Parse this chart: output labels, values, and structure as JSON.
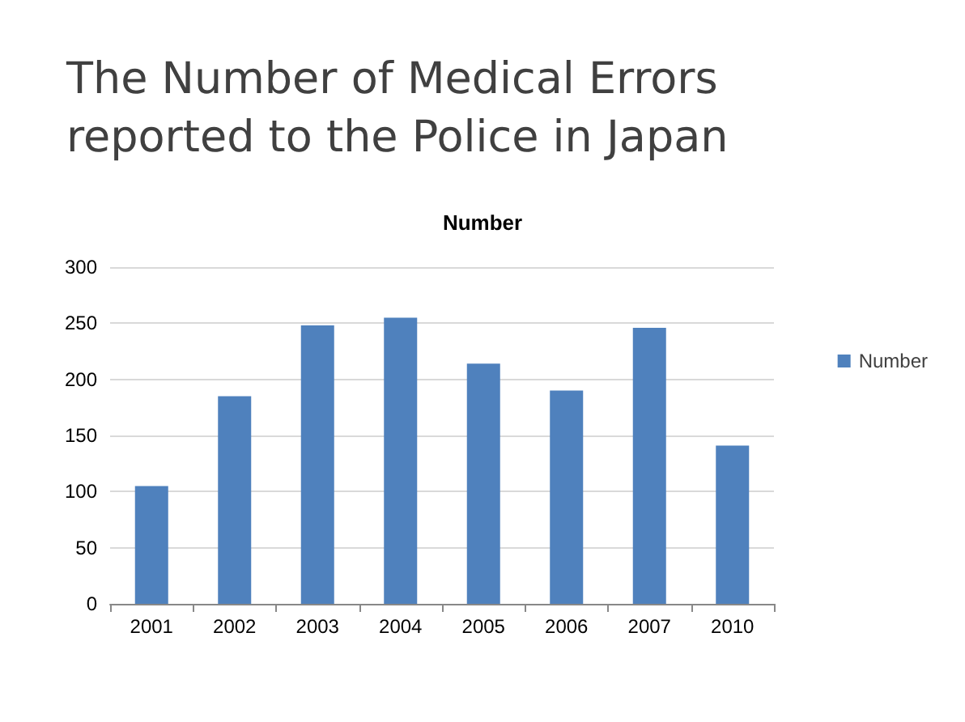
{
  "chart_data": {
    "type": "bar",
    "title": "The Number of Medical Errors reported to the Police in Japan",
    "subtitle": "Number",
    "categories": [
      "2001",
      "2002",
      "2003",
      "2004",
      "2005",
      "2006",
      "2007",
      "2010"
    ],
    "series": [
      {
        "name": "Number",
        "color": "#4f81bd",
        "values": [
          105,
          185,
          248,
          255,
          214,
          190,
          246,
          141
        ]
      }
    ],
    "ylim": [
      0,
      300
    ],
    "yticks": [
      0,
      50,
      100,
      150,
      200,
      250,
      300
    ],
    "grid": "y",
    "legend": "right"
  }
}
